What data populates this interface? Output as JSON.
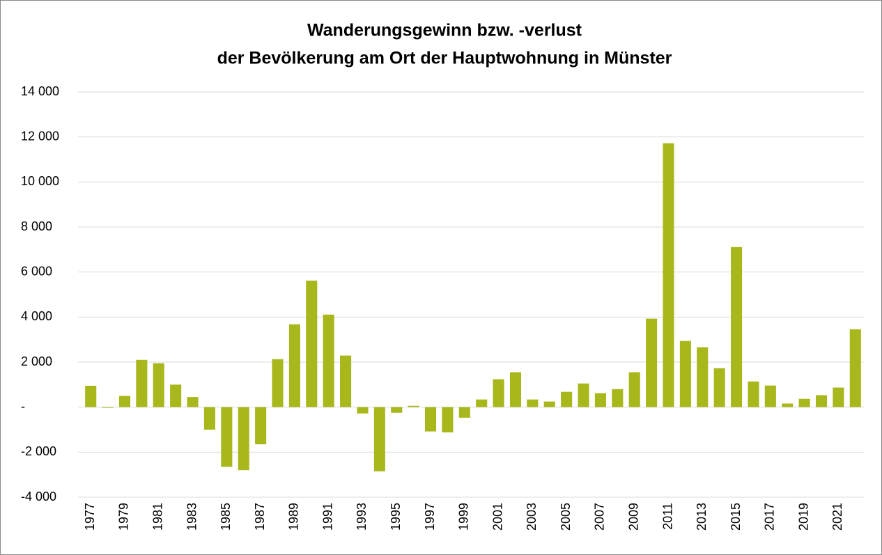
{
  "chart_data": {
    "type": "bar",
    "title": "Wanderungsgewinn bzw. -verlust",
    "subtitle": "der Bevölkerung am Ort der Hauptwohnung in Münster",
    "categories": [
      "1977",
      null,
      "1979",
      null,
      "1981",
      null,
      "1983",
      null,
      "1985",
      null,
      "1987",
      null,
      "1989",
      null,
      "1991",
      null,
      "1993",
      null,
      "1995",
      null,
      "1997",
      null,
      "1999",
      null,
      "2001",
      null,
      "2003",
      null,
      "2005",
      null,
      "2007",
      null,
      "2009",
      null,
      "2011",
      null,
      "2013",
      null,
      "2015",
      null,
      "2017",
      null,
      "2019",
      null,
      "2021",
      null
    ],
    "values": [
      950,
      -30,
      500,
      2100,
      1950,
      1000,
      450,
      -1000,
      -2650,
      -2800,
      -1650,
      2130,
      3680,
      5620,
      4110,
      2290,
      -280,
      -2850,
      -250,
      60,
      -1080,
      -1120,
      -470,
      340,
      1240,
      1550,
      340,
      250,
      680,
      1050,
      620,
      800,
      1550,
      3930,
      11720,
      2940,
      2660,
      1730,
      7110,
      1140,
      960,
      160,
      370,
      530,
      870,
      3460
    ],
    "color": "#a8b81c",
    "ylim": [
      -4000,
      14000
    ],
    "yticks": [
      {
        "value": -4000,
        "label": "-4 000"
      },
      {
        "value": -2000,
        "label": "-2 000"
      },
      {
        "value": 0,
        "label": "-"
      },
      {
        "value": 2000,
        "label": "2 000"
      },
      {
        "value": 4000,
        "label": "4 000"
      },
      {
        "value": 6000,
        "label": "6 000"
      },
      {
        "value": 8000,
        "label": "8 000"
      },
      {
        "value": 10000,
        "label": "10 000"
      },
      {
        "value": 12000,
        "label": "12 000"
      },
      {
        "value": 14000,
        "label": "14 000"
      }
    ],
    "grid": true
  }
}
